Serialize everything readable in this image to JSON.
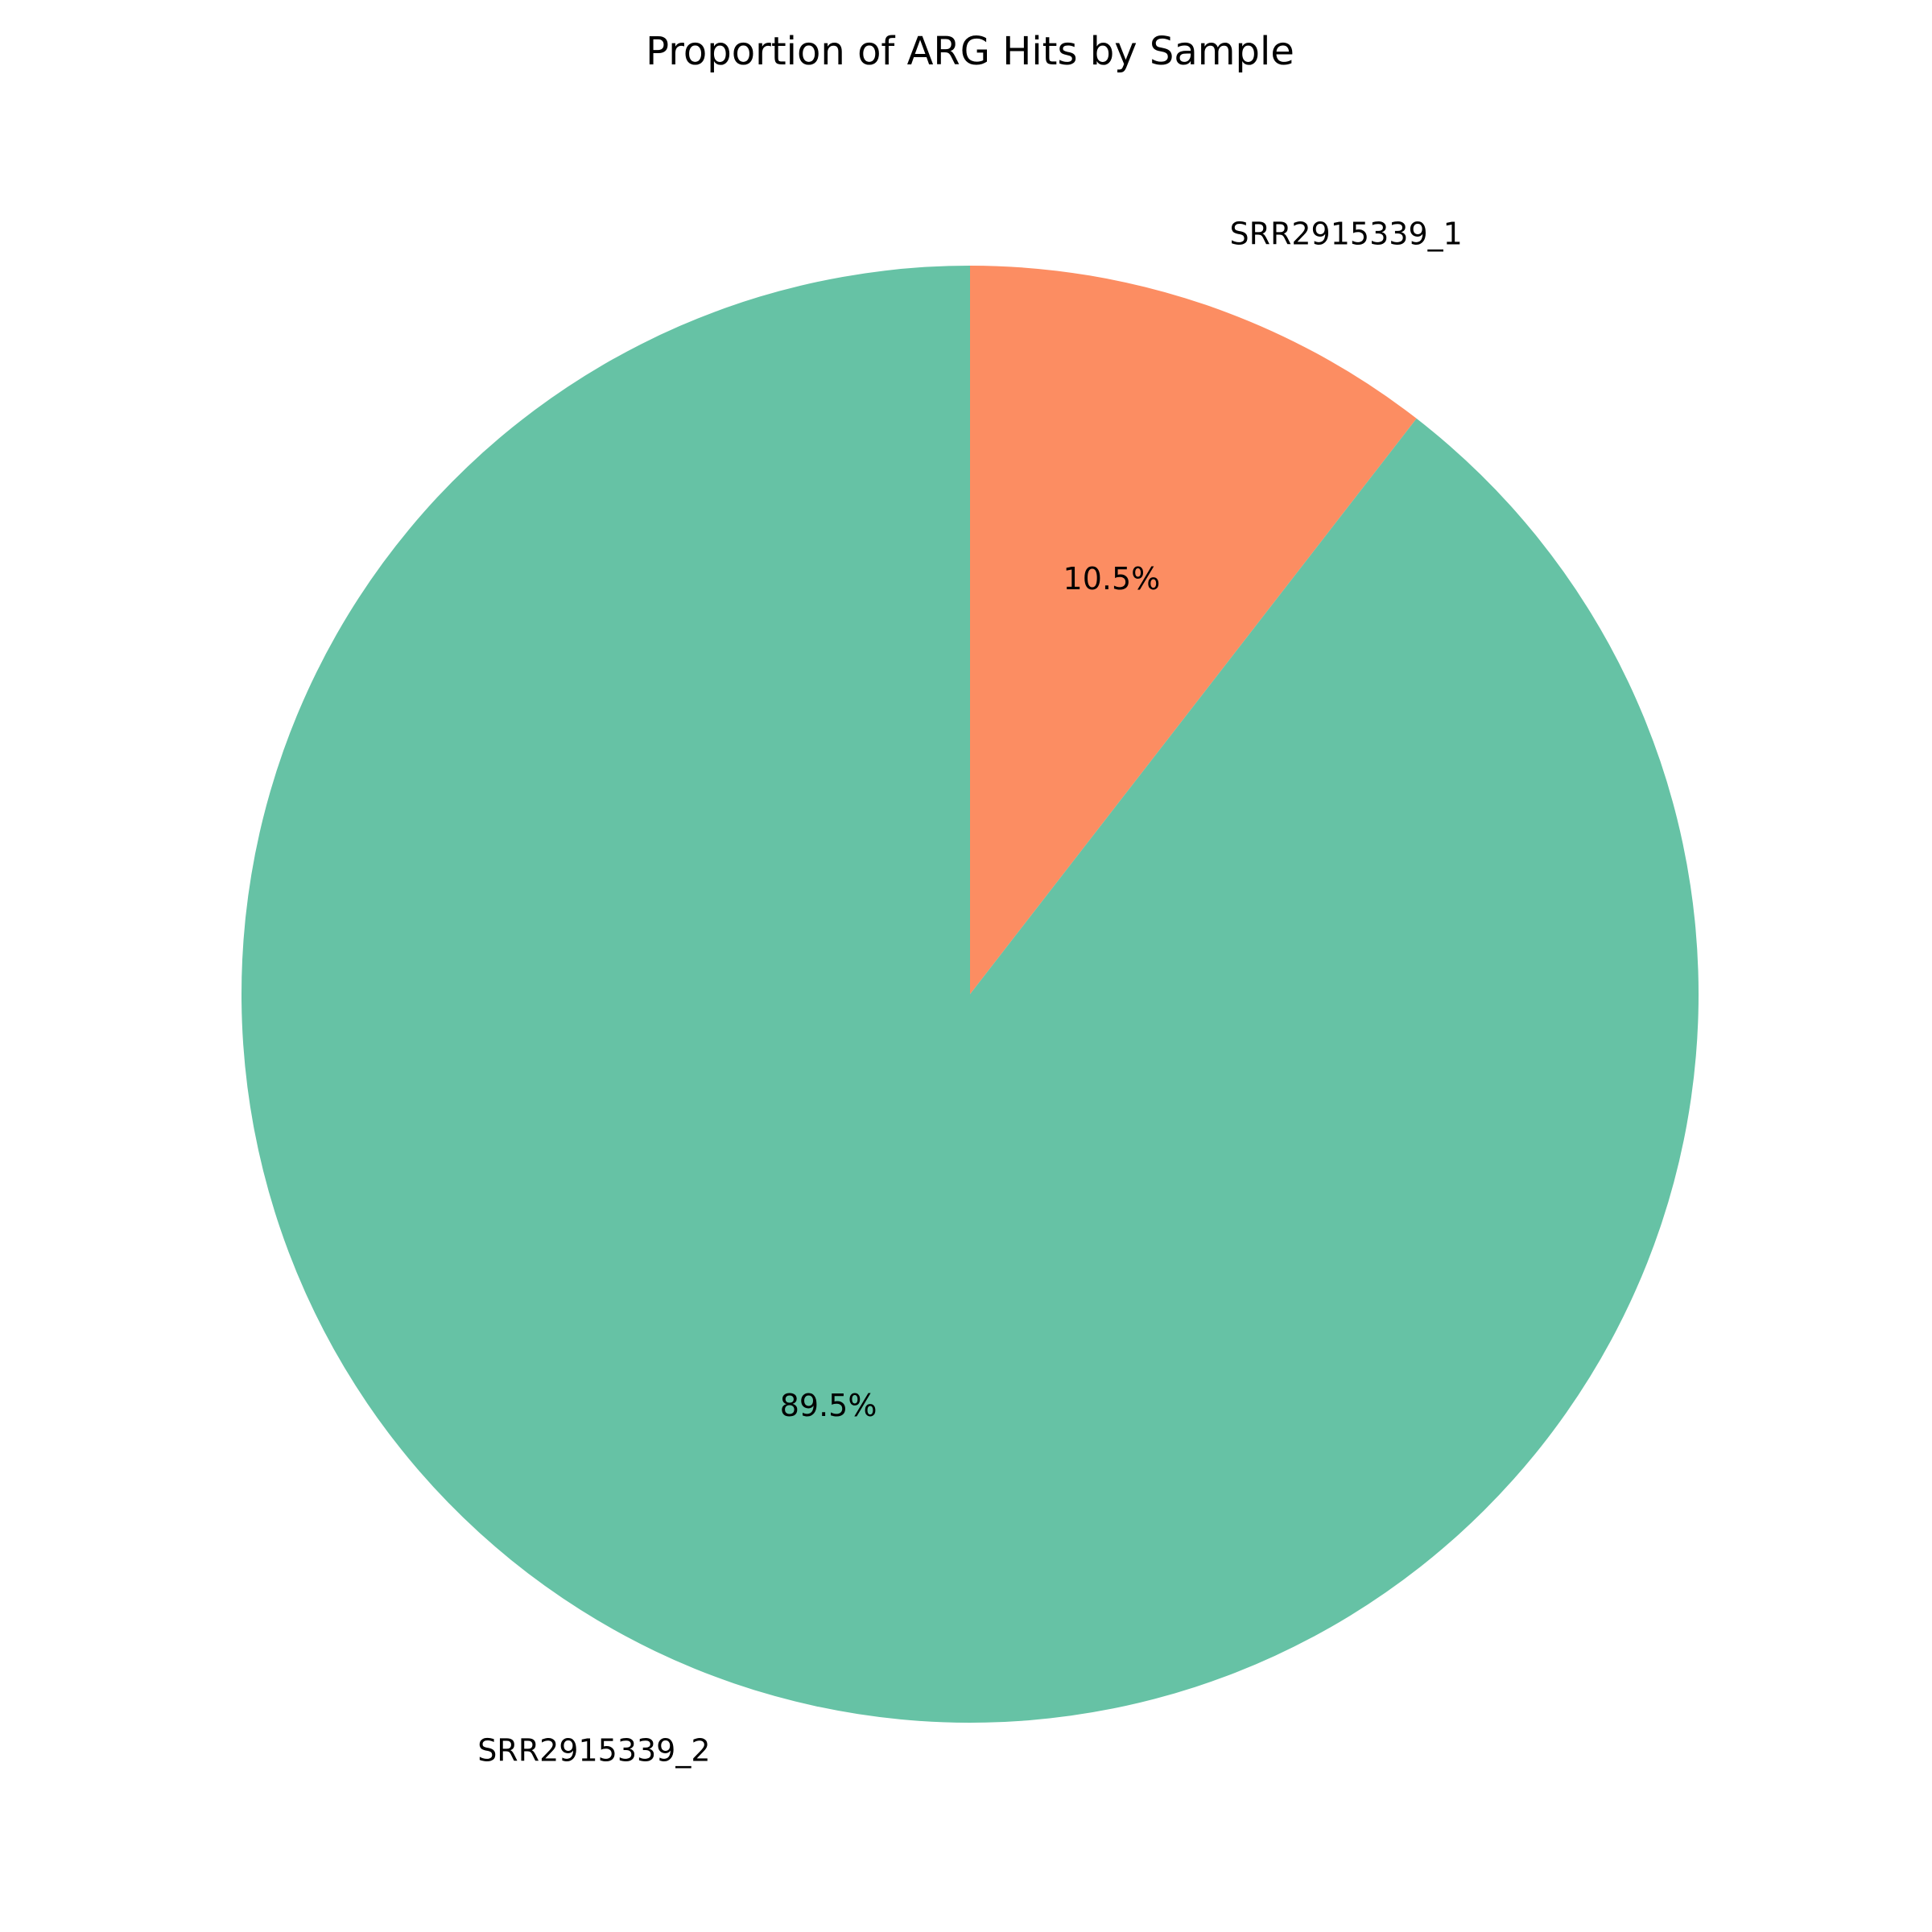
{
  "chart_data": {
    "type": "pie",
    "title": "Proportion of ARG Hits by Sample",
    "start_angle_deg": 90,
    "direction": "clockwise",
    "slices": [
      {
        "label": "SRR2915339_1",
        "value": 10.5,
        "pct_label": "10.5%",
        "color": "#fc8d62"
      },
      {
        "label": "SRR2915339_2",
        "value": 89.5,
        "pct_label": "89.5%",
        "color": "#66c2a5"
      }
    ]
  }
}
